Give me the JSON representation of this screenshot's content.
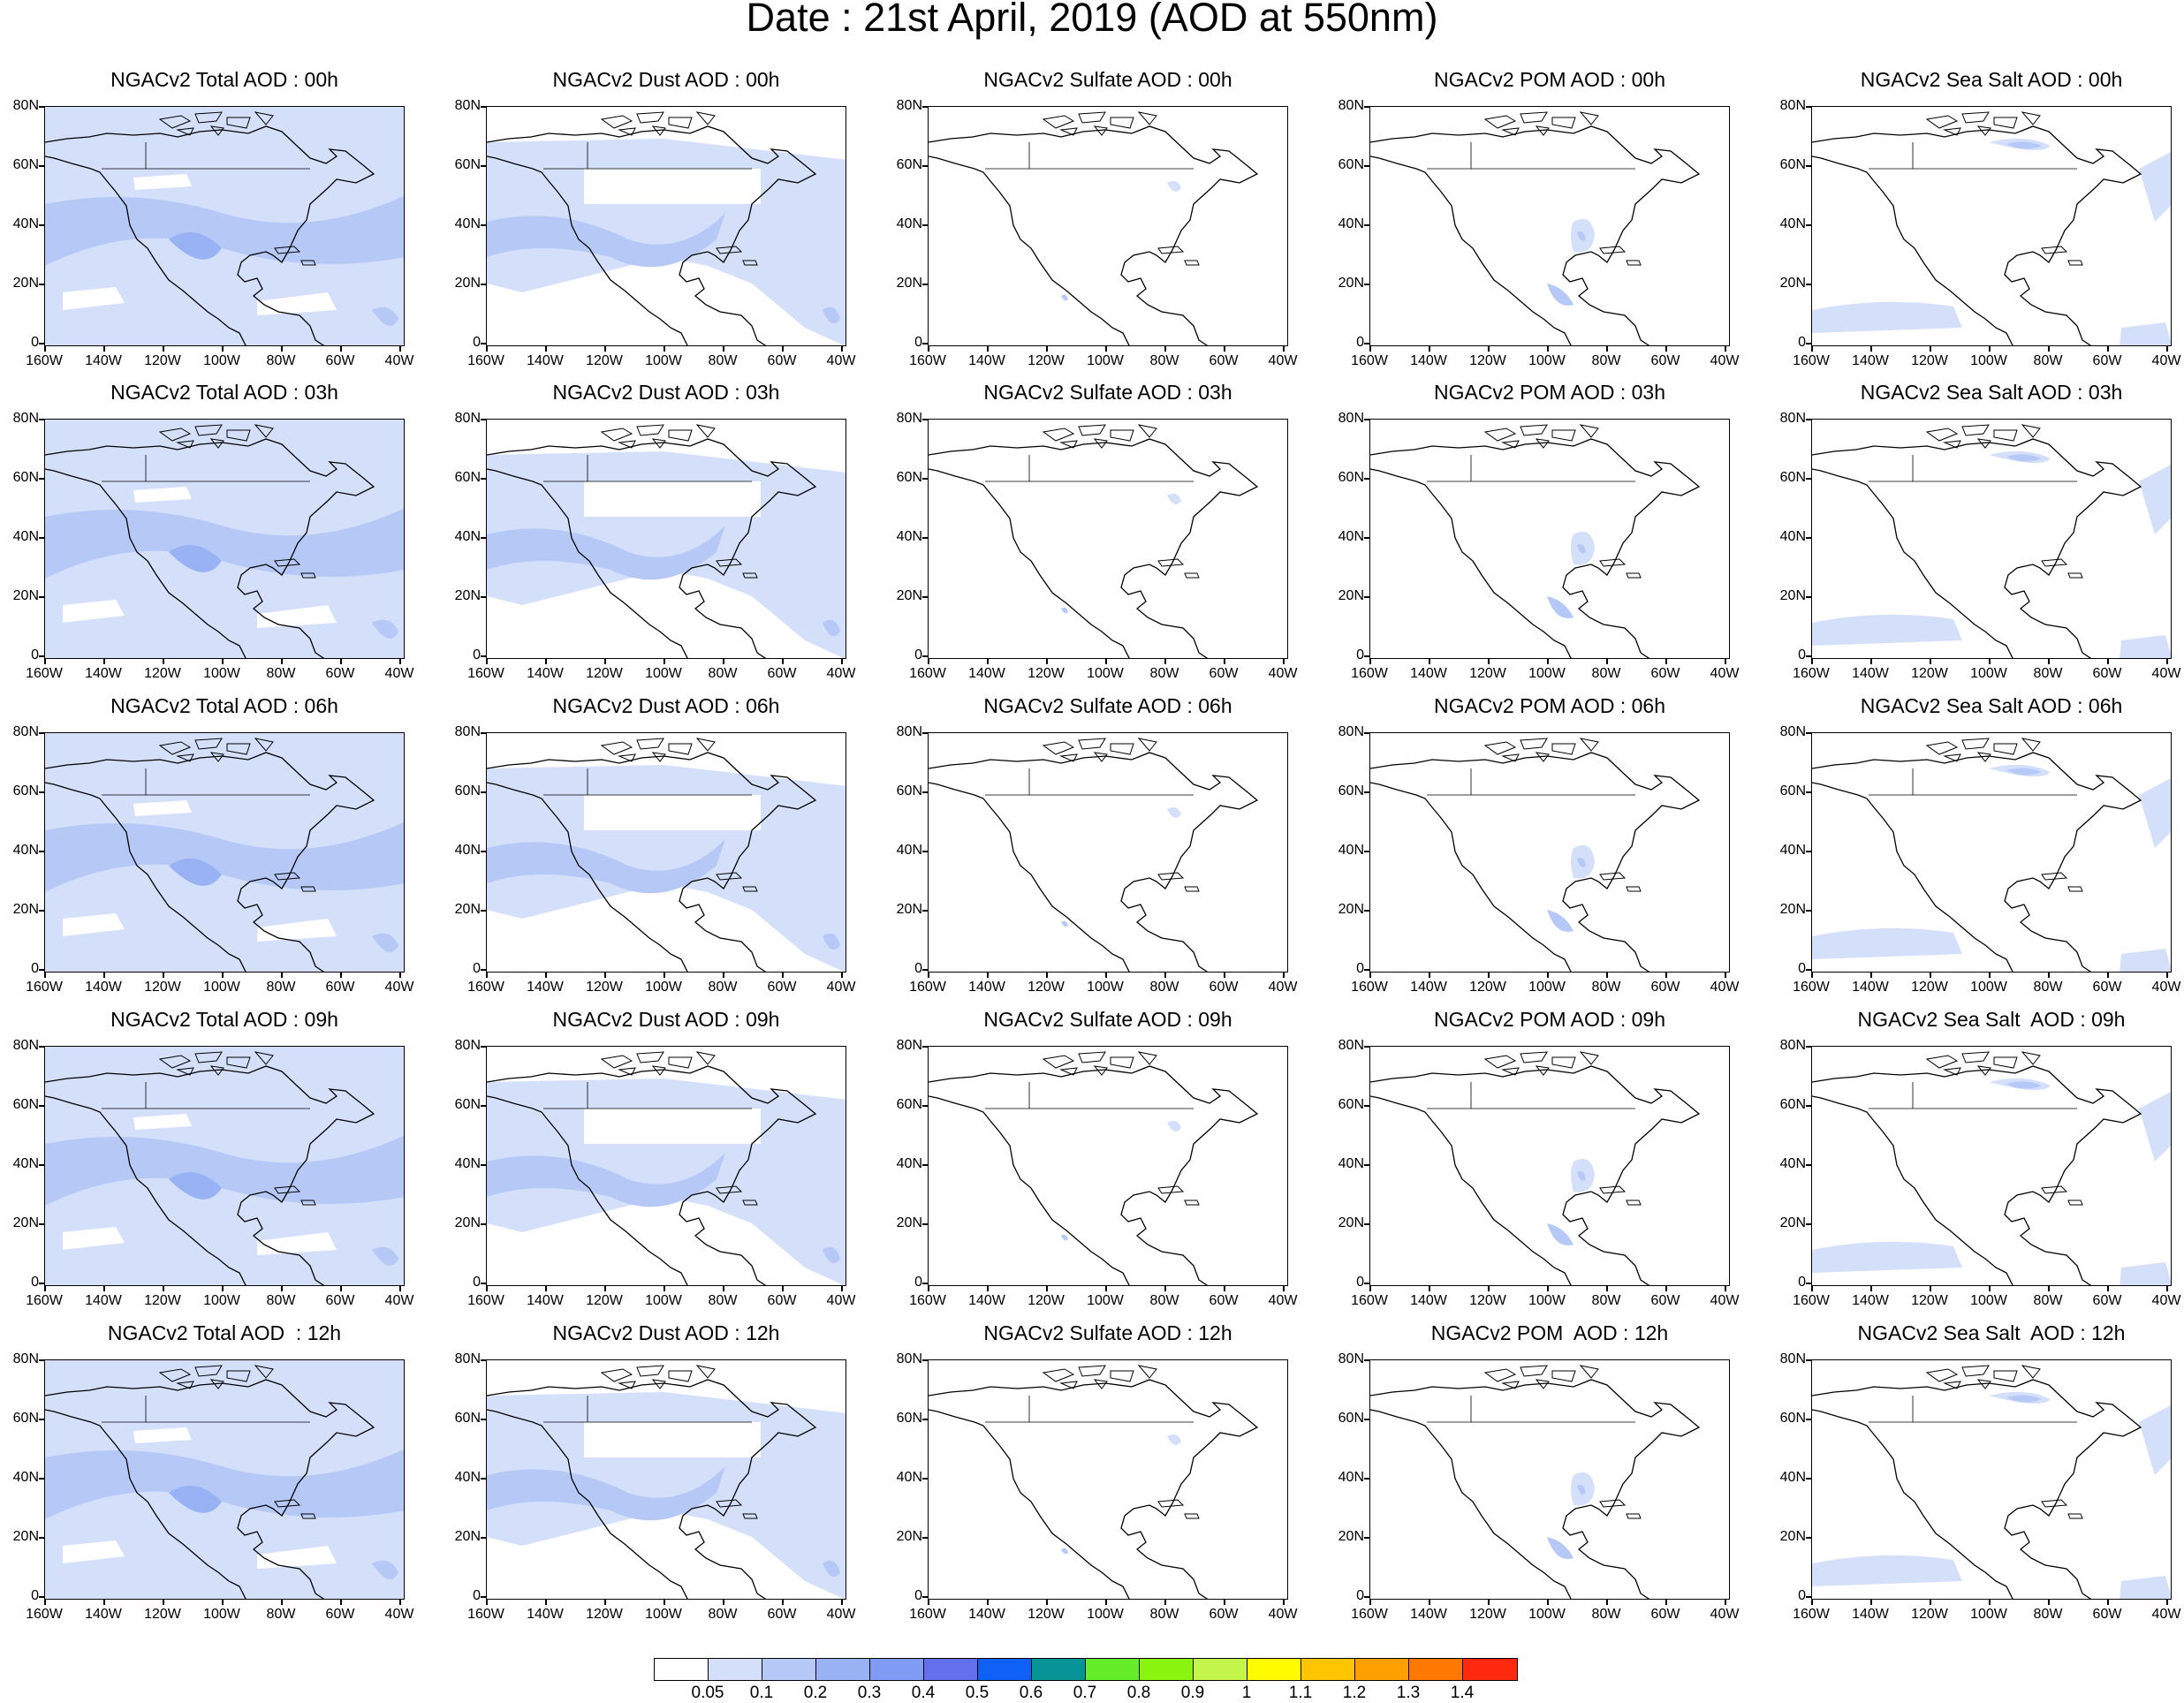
{
  "title": "Date : 21st April, 2019 (AOD at 550nm)",
  "panels": [
    [
      "NGACv2 Total AOD : 00h",
      "NGACv2 Dust AOD : 00h",
      "NGACv2 Sulfate AOD : 00h",
      "NGACv2 POM AOD : 00h",
      "NGACv2 Sea Salt AOD : 00h"
    ],
    [
      "NGACv2 Total AOD : 03h",
      "NGACv2 Dust AOD : 03h",
      "NGACv2 Sulfate AOD : 03h",
      "NGACv2 POM AOD : 03h",
      "NGACv2 Sea Salt AOD : 03h"
    ],
    [
      "NGACv2 Total AOD : 06h",
      "NGACv2 Dust AOD : 06h",
      "NGACv2 Sulfate AOD : 06h",
      "NGACv2 POM AOD : 06h",
      "NGACv2 Sea Salt AOD : 06h"
    ],
    [
      "NGACv2 Total AOD : 09h",
      "NGACv2 Dust AOD : 09h",
      "NGACv2 Sulfate AOD : 09h",
      "NGACv2 POM AOD : 09h",
      "NGACv2 Sea Salt  AOD : 09h"
    ],
    [
      "NGACv2 Total AOD  : 12h",
      "NGACv2 Dust AOD : 12h",
      "NGACv2 Sulfate AOD : 12h",
      "NGACv2 POM  AOD : 12h",
      "NGACv2 Sea Salt  AOD : 12h"
    ]
  ],
  "lat_labels": [
    "80N",
    "60N",
    "40N",
    "20N",
    "0"
  ],
  "lon_labels": [
    "160W",
    "140W",
    "120W",
    "100W",
    "80W",
    "60W",
    "40W"
  ],
  "colorbar": {
    "colors": [
      "#ffffff",
      "#d4dffa",
      "#b6c9f6",
      "#98b2f4",
      "#7f9bf3",
      "#6270ee",
      "#0f61f5",
      "#069497",
      "#66ed2a",
      "#89f50f",
      "#c3f54a",
      "#fffc00",
      "#ffc600",
      "#ff9f00",
      "#ff7800",
      "#ff2a0d"
    ],
    "labels": [
      "0.05",
      "0.1",
      "0.2",
      "0.3",
      "0.4",
      "0.5",
      "0.6",
      "0.7",
      "0.8",
      "0.9",
      "1",
      "1.1",
      "1.2",
      "1.3",
      "1.4"
    ]
  }
}
